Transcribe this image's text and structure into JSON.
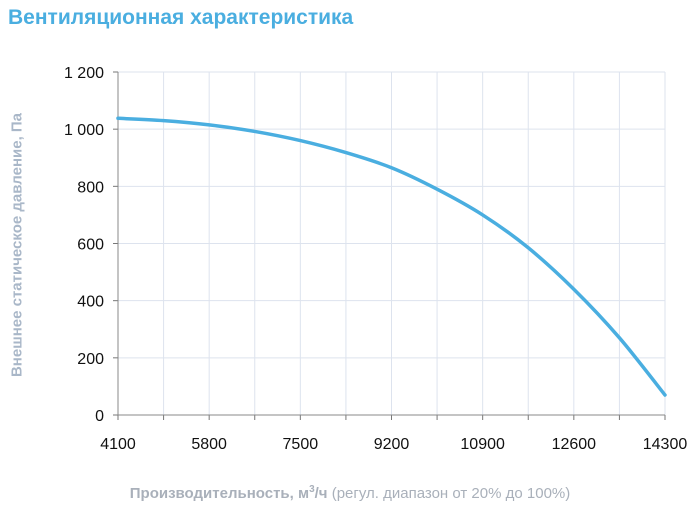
{
  "chart_data": {
    "type": "line",
    "title": "Вентиляционная характеристика",
    "xlabel_bold": "Производительность, м",
    "xlabel_sup": "3",
    "xlabel_unit": "/ч",
    "xlabel_note": " (регул. диапазон от 20% до 100%)",
    "ylabel": "Внешнее статическое давление, Па",
    "xlim": [
      4100,
      14300
    ],
    "ylim": [
      0,
      1200
    ],
    "x_ticks": [
      "4100",
      "5800",
      "7500",
      "9200",
      "10900",
      "12600",
      "14300"
    ],
    "y_ticks": [
      "0",
      "200",
      "400",
      "600",
      "800",
      "1 000",
      "1 200"
    ],
    "grid": true,
    "color": "#4aaee0",
    "series": [
      {
        "x": [
          4100,
          4950,
          5800,
          6650,
          7500,
          8350,
          9200,
          10050,
          10900,
          11750,
          12600,
          13450,
          14300
        ],
        "y": [
          1038,
          1030,
          1015,
          992,
          960,
          918,
          865,
          790,
          700,
          585,
          440,
          270,
          70
        ]
      }
    ]
  }
}
